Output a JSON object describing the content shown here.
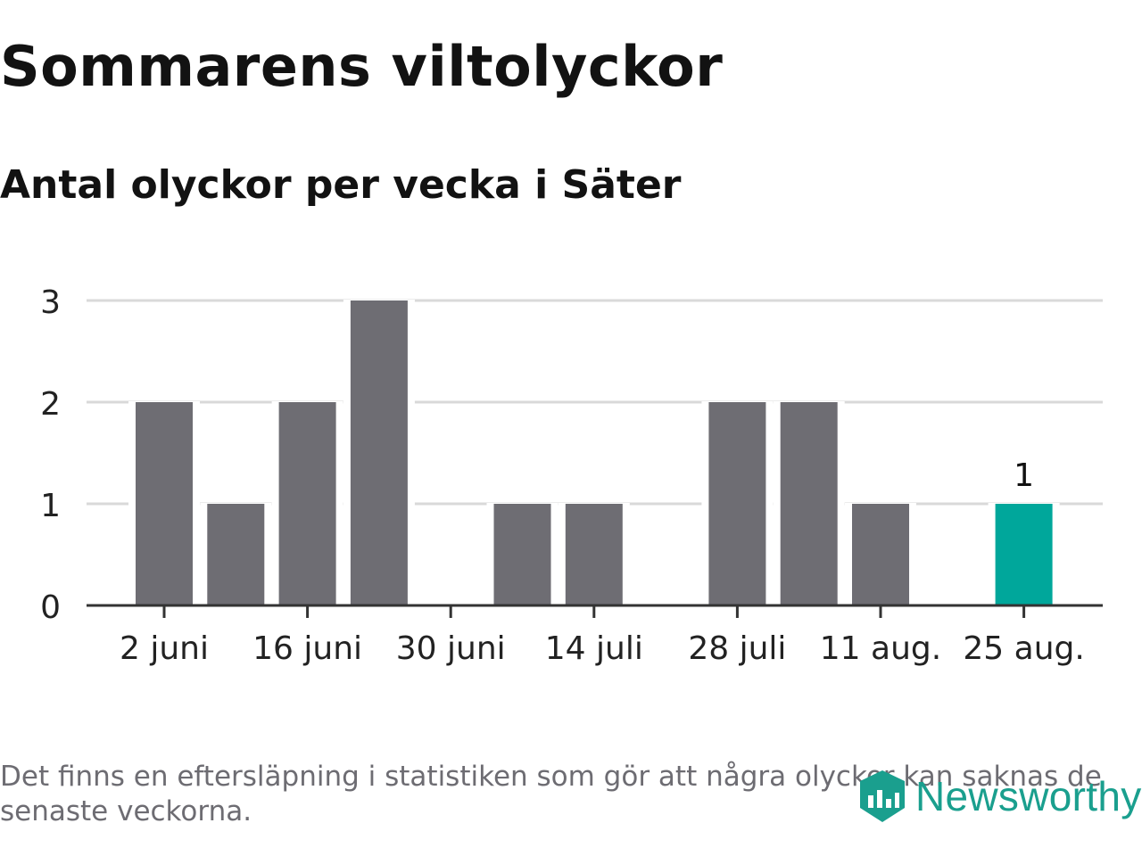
{
  "title": "Sommarens viltolyckor",
  "subtitle": "Antal olyckor per vecka i Säter",
  "footnote": "Det finns en eftersläpning i statistiken som gör att några olyckor kan saknas de senaste veckorna.",
  "brand": "Newsworthy",
  "colors": {
    "bar": "#6e6d73",
    "highlight": "#00a79b",
    "grid": "#d9d9d9",
    "axis": "#333333",
    "brand": "#1a9f8e"
  },
  "chart_data": {
    "type": "bar",
    "categories": [
      "2 juni",
      "9 juni",
      "16 juni",
      "23 juni",
      "30 juni",
      "7 juli",
      "14 juli",
      "21 juli",
      "28 juli",
      "4 aug.",
      "11 aug.",
      "18 aug.",
      "25 aug."
    ],
    "values": [
      2,
      1,
      2,
      3,
      0,
      1,
      1,
      0,
      2,
      2,
      1,
      0,
      1
    ],
    "tick_labels": [
      "2 juni",
      "16 juni",
      "30 juni",
      "14 juli",
      "28 juli",
      "11 aug.",
      "25 aug."
    ],
    "y_ticks": [
      "0",
      "1",
      "2",
      "3"
    ],
    "ylim": [
      0,
      3
    ],
    "grid": true,
    "highlight_index": 12,
    "highlight_label": "1",
    "xlabel": "",
    "ylabel": ""
  }
}
